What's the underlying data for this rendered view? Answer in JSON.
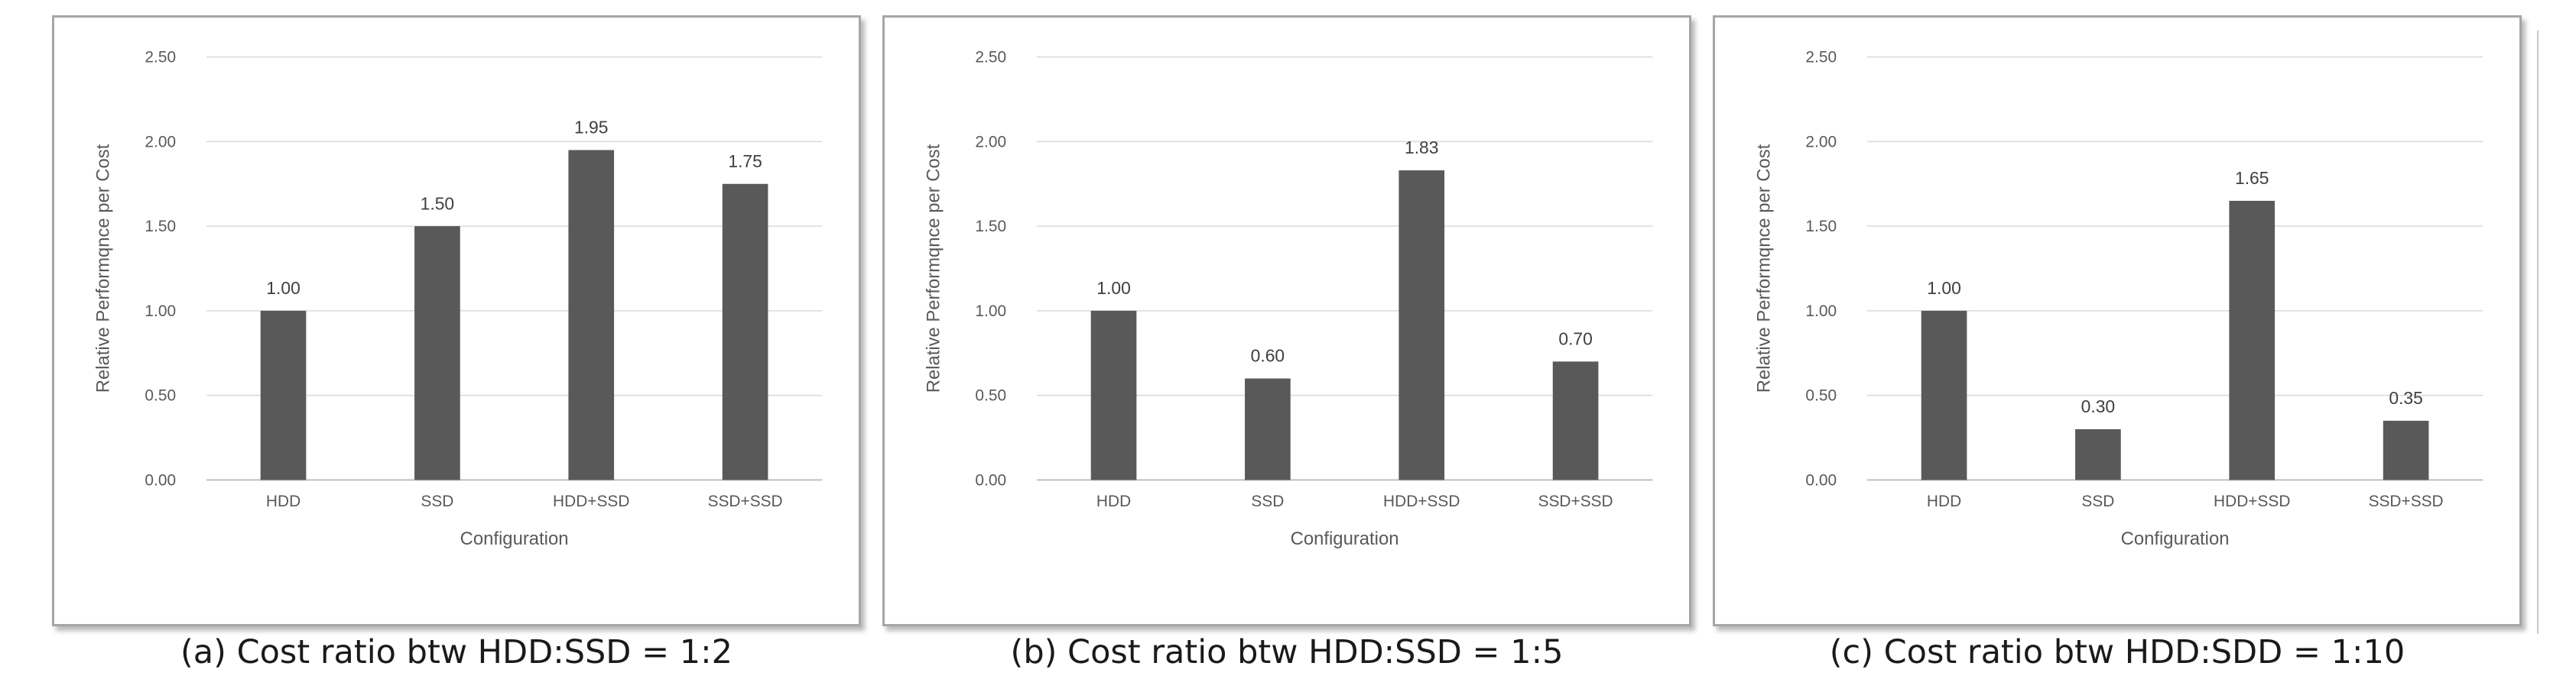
{
  "chart_data": [
    {
      "type": "bar",
      "title": "",
      "xlabel": "Configuration",
      "ylabel": "Relative Performqnce per Cost",
      "ylim": [
        0,
        2.5
      ],
      "yticks": [
        "0.00",
        "0.50",
        "1.00",
        "1.50",
        "2.00",
        "2.50"
      ],
      "categories": [
        "HDD",
        "SSD",
        "HDD+SSD",
        "SSD+SSD"
      ],
      "values": [
        1.0,
        1.5,
        1.95,
        1.75
      ],
      "data_labels": [
        "1.00",
        "1.50",
        "1.95",
        "1.75"
      ],
      "grid": true,
      "bar_color": "#595959",
      "caption": "(a) Cost ratio btw HDD:SSD = 1:2"
    },
    {
      "type": "bar",
      "title": "",
      "xlabel": "Configuration",
      "ylabel": "Relative Performqnce per Cost",
      "ylim": [
        0,
        2.5
      ],
      "yticks": [
        "0.00",
        "0.50",
        "1.00",
        "1.50",
        "2.00",
        "2.50"
      ],
      "categories": [
        "HDD",
        "SSD",
        "HDD+SSD",
        "SSD+SSD"
      ],
      "values": [
        1.0,
        0.6,
        1.83,
        0.7
      ],
      "data_labels": [
        "1.00",
        "0.60",
        "1.83",
        "0.70"
      ],
      "grid": true,
      "bar_color": "#595959",
      "caption": "(b) Cost ratio btw HDD:SSD = 1:5"
    },
    {
      "type": "bar",
      "title": "",
      "xlabel": "Configuration",
      "ylabel": "Relative Performqnce per Cost",
      "ylim": [
        0,
        2.5
      ],
      "yticks": [
        "0.00",
        "0.50",
        "1.00",
        "1.50",
        "2.00",
        "2.50"
      ],
      "categories": [
        "HDD",
        "SSD",
        "HDD+SSD",
        "SSD+SSD"
      ],
      "values": [
        1.0,
        0.3,
        1.65,
        0.35
      ],
      "data_labels": [
        "1.00",
        "0.30",
        "1.65",
        "0.35"
      ],
      "grid": true,
      "bar_color": "#595959",
      "caption": "(c) Cost ratio btw HDD:SDD = 1:10"
    }
  ]
}
